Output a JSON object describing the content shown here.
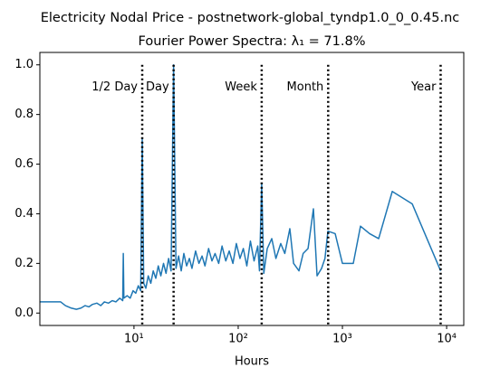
{
  "chart_data": {
    "type": "line",
    "title": "Electricity Nodal Price - postnetwork-global_tyndp1.0_0_0.45.nc",
    "subtitle": "Fourier Power Spectra: λ₁ = 71.8%",
    "xlabel": "Hours",
    "xscale": "log",
    "xlim": [
      1.25,
      14600
    ],
    "ylim": [
      -0.05,
      1.05
    ],
    "xticks": [
      {
        "value": 10,
        "label": "10¹"
      },
      {
        "value": 100,
        "label": "10²"
      },
      {
        "value": 1000,
        "label": "10³"
      },
      {
        "value": 10000,
        "label": "10⁴"
      }
    ],
    "yticks": [
      {
        "value": 0,
        "label": "0.0"
      },
      0.2,
      0.4,
      0.6,
      0.8,
      {
        "value": 1,
        "label": "1.0"
      }
    ],
    "color": "#1f77b4",
    "markers": [
      {
        "x": 12,
        "label": "1/2 Day"
      },
      {
        "x": 24,
        "label": "Day"
      },
      {
        "x": 168,
        "label": "Week"
      },
      {
        "x": 730,
        "label": "Month"
      },
      {
        "x": 8760,
        "label": "Year"
      }
    ],
    "marker_label_y": 0.91,
    "x": [
      1.25,
      1.98,
      2.2,
      2.5,
      2.8,
      3.1,
      3.4,
      3.7,
      4.0,
      4.4,
      4.8,
      5.2,
      5.7,
      6.2,
      6.7,
      7.3,
      7.8,
      7.9,
      8.0,
      8.6,
      9.2,
      9.8,
      10.4,
      11.0,
      11.6,
      12.0,
      12.4,
      13.0,
      13.7,
      14.5,
      15.3,
      16.2,
      17.1,
      18.1,
      19.2,
      20.3,
      21.5,
      22.7,
      24.0,
      25.3,
      26.8,
      28.4,
      30.1,
      32,
      34,
      36,
      39,
      42,
      45,
      48,
      52,
      56,
      60,
      65,
      70,
      76,
      82,
      89,
      96,
      104,
      112,
      121,
      131,
      142,
      154,
      160,
      168,
      176,
      190,
      210,
      230,
      256,
      280,
      313,
      340,
      383,
      420,
      468,
      527,
      571,
      631,
      680,
      726,
      852,
      1000,
      1271,
      1491,
      1823,
      2228,
      3008,
      4671,
      8760
    ],
    "values": [
      0.045,
      0.045,
      0.03,
      0.02,
      0.015,
      0.02,
      0.03,
      0.025,
      0.035,
      0.04,
      0.03,
      0.045,
      0.04,
      0.05,
      0.045,
      0.06,
      0.05,
      0.24,
      0.06,
      0.07,
      0.06,
      0.09,
      0.08,
      0.11,
      0.09,
      0.7,
      0.12,
      0.1,
      0.15,
      0.12,
      0.17,
      0.14,
      0.19,
      0.15,
      0.2,
      0.16,
      0.22,
      0.17,
      1.0,
      0.18,
      0.23,
      0.17,
      0.24,
      0.19,
      0.22,
      0.18,
      0.25,
      0.2,
      0.23,
      0.19,
      0.26,
      0.21,
      0.24,
      0.2,
      0.27,
      0.21,
      0.25,
      0.2,
      0.28,
      0.22,
      0.26,
      0.19,
      0.29,
      0.21,
      0.27,
      0.17,
      0.52,
      0.16,
      0.26,
      0.3,
      0.22,
      0.28,
      0.24,
      0.34,
      0.2,
      0.17,
      0.24,
      0.26,
      0.42,
      0.15,
      0.18,
      0.22,
      0.33,
      0.32,
      0.2,
      0.2,
      0.35,
      0.32,
      0.3,
      0.49,
      0.44,
      0.17
    ]
  }
}
